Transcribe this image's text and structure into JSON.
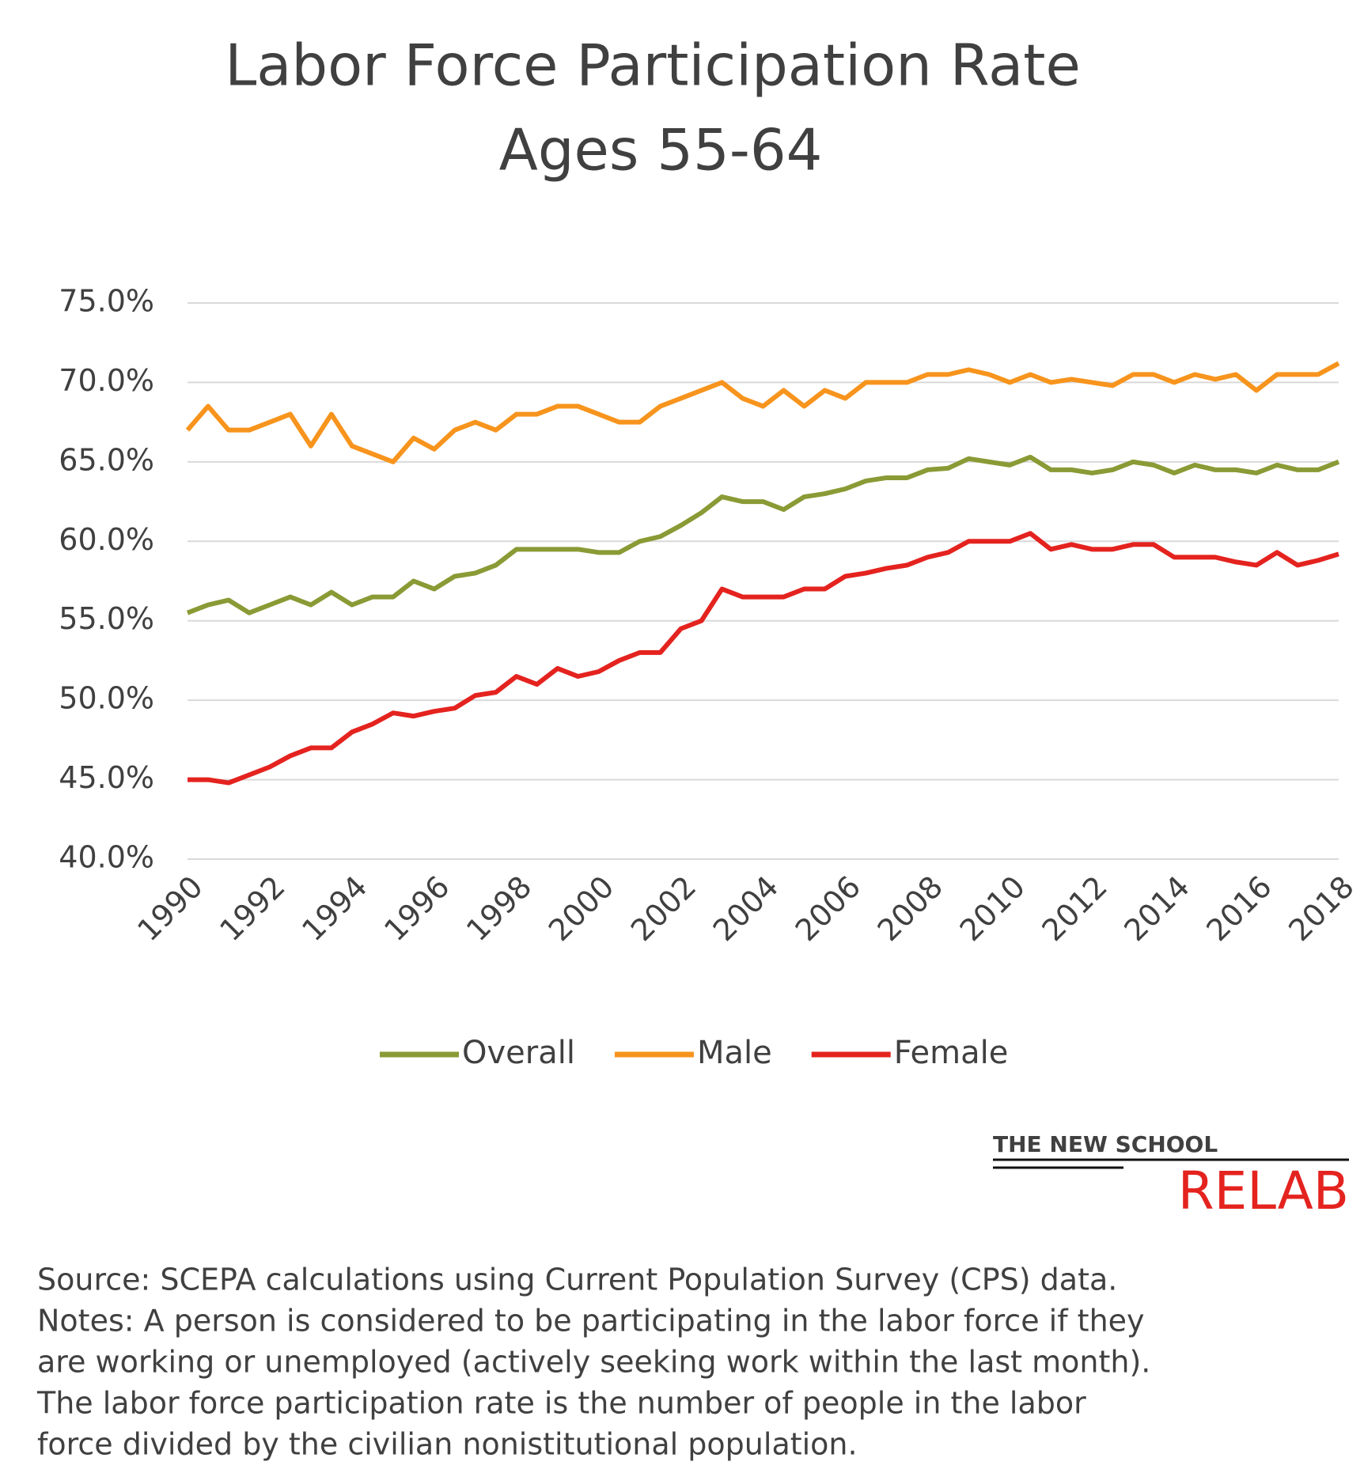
{
  "chart_data": {
    "type": "line",
    "title": [
      "Labor Force Participation Rate",
      "Ages 55-64"
    ],
    "x": [
      1990,
      1990.5,
      1991,
      1991.5,
      1992,
      1992.5,
      1993,
      1993.5,
      1994,
      1994.5,
      1995,
      1995.5,
      1996,
      1996.5,
      1997,
      1997.5,
      1998,
      1998.5,
      1999,
      1999.5,
      2000,
      2000.5,
      2001,
      2001.5,
      2002,
      2002.5,
      2003,
      2003.5,
      2004,
      2004.5,
      2005,
      2005.5,
      2006,
      2006.5,
      2007,
      2007.5,
      2008,
      2008.5,
      2009,
      2009.5,
      2010,
      2010.5,
      2011,
      2011.5,
      2012,
      2012.5,
      2013,
      2013.5,
      2014,
      2014.5,
      2015,
      2015.5,
      2016,
      2016.5,
      2017,
      2017.5,
      2018
    ],
    "series": [
      {
        "name": "Overall",
        "color": "#8a9a35",
        "values": [
          55.5,
          56,
          56.3,
          55.5,
          56,
          56.5,
          56,
          56.8,
          56,
          56.5,
          56.5,
          57.5,
          57,
          57.8,
          58,
          58.5,
          59.5,
          59.5,
          59.5,
          59.5,
          59.3,
          59.3,
          60,
          60.3,
          61,
          61.8,
          62.8,
          62.5,
          62.5,
          62,
          62.8,
          63,
          63.3,
          63.8,
          64,
          64,
          64.5,
          64.6,
          65.2,
          65,
          64.8,
          65.3,
          64.5,
          64.5,
          64.3,
          64.5,
          65,
          64.8,
          64.3,
          64.8,
          64.5,
          64.5,
          64.3,
          64.8,
          64.5,
          64.5,
          65
        ]
      },
      {
        "name": "Male",
        "color": "#f7941d",
        "values": [
          67,
          68.5,
          67,
          67,
          67.5,
          68,
          66,
          68,
          66,
          65.5,
          65,
          66.5,
          65.8,
          67,
          67.5,
          67,
          68,
          68,
          68.5,
          68.5,
          68,
          67.5,
          67.5,
          68.5,
          69,
          69.5,
          70,
          69,
          68.5,
          69.5,
          68.5,
          69.5,
          69,
          70,
          70,
          70,
          70.5,
          70.5,
          70.8,
          70.5,
          70,
          70.5,
          70,
          70.2,
          70,
          69.8,
          70.5,
          70.5,
          70,
          70.5,
          70.2,
          70.5,
          69.5,
          70.5,
          70.5,
          70.5,
          71.2
        ]
      },
      {
        "name": "Female",
        "color": "#e4231f",
        "values": [
          45,
          45,
          44.8,
          45.3,
          45.8,
          46.5,
          47,
          47,
          48,
          48.5,
          49.2,
          49,
          49.3,
          49.5,
          50.3,
          50.5,
          51.5,
          51,
          52,
          51.5,
          51.8,
          52.5,
          53,
          53,
          54.5,
          55,
          57,
          56.5,
          56.5,
          56.5,
          57,
          57,
          57.8,
          58,
          58.3,
          58.5,
          59,
          59.3,
          60,
          60,
          60,
          60.5,
          59.5,
          59.8,
          59.5,
          59.5,
          59.8,
          59.8,
          59,
          59,
          59,
          58.7,
          58.5,
          59.3,
          58.5,
          58.8,
          59.2
        ]
      }
    ],
    "xlim": [
      1990,
      2018
    ],
    "xticks": [
      1990,
      1992,
      1994,
      1996,
      1998,
      2000,
      2002,
      2004,
      2006,
      2008,
      2010,
      2012,
      2014,
      2016,
      2018
    ],
    "ylim": [
      40,
      75
    ],
    "yticks": [
      {
        "value": 40,
        "label": "40.0%"
      },
      {
        "value": 45,
        "label": "45.0%"
      },
      {
        "value": 50,
        "label": "50.0%"
      },
      {
        "value": 55,
        "label": "55.0%"
      },
      {
        "value": 60,
        "label": "60.0%"
      },
      {
        "value": 65,
        "label": "65.0%"
      },
      {
        "value": 70,
        "label": "70.0%"
      },
      {
        "value": 75,
        "label": "75.0%"
      }
    ],
    "grid": true,
    "legend": "bottom",
    "logo": [
      "THE NEW SCHOOL",
      "RELAB"
    ],
    "notes": [
      "Source: SCEPA calculations using Current Population Survey (CPS) data.",
      "Notes: A person is considered to be participating in the labor force if they",
      "are working or unemployed (actively seeking work within the last month).",
      "The labor force participation rate is the number of people in the labor",
      "force divided by the civilian nonistitutional population."
    ]
  }
}
